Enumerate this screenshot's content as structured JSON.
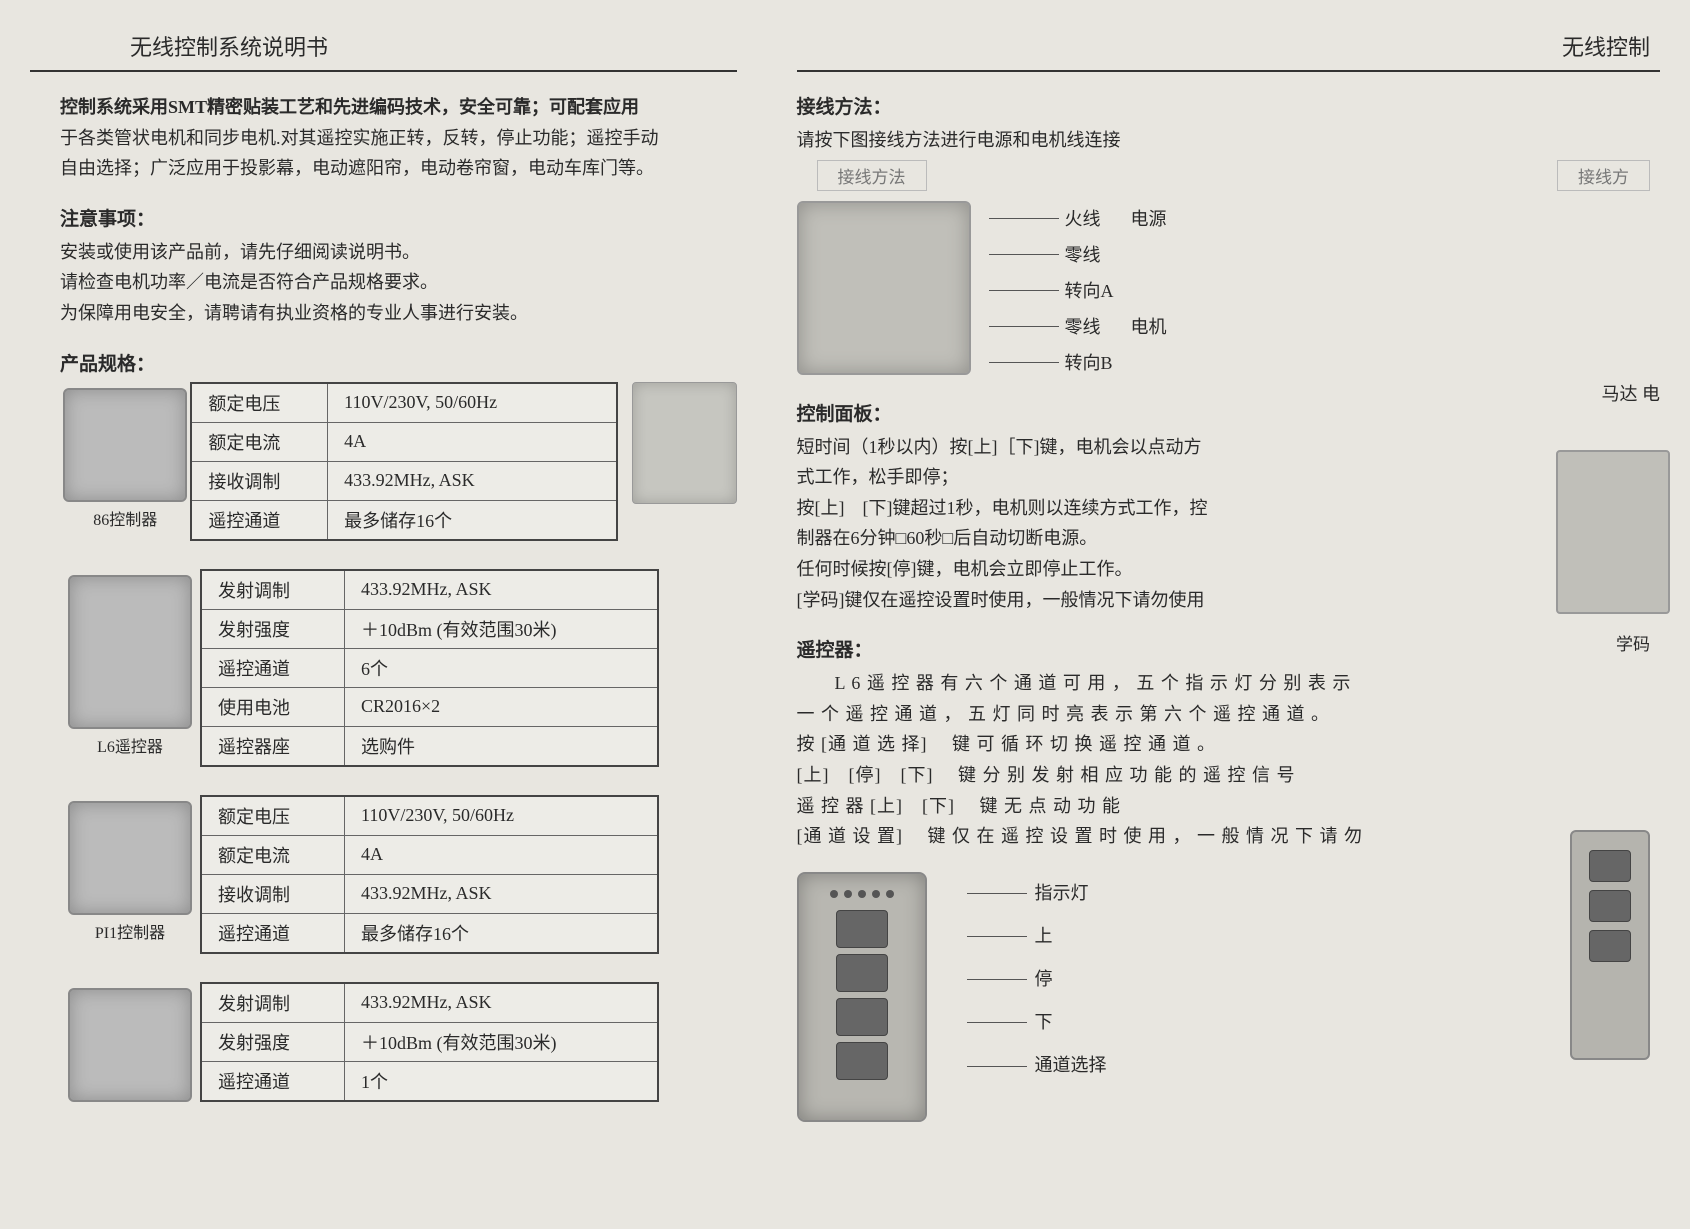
{
  "doc": {
    "title_left": "无线控制系统说明书",
    "title_right_partial": "无线控制",
    "intro_bold": "控制系统采用SMT精密贴装工艺和先进编码技术，安全可靠；可配套应用",
    "intro_line2": "于各类管状电机和同步电机.对其遥控实施正转，反转，停止功能；遥控手动",
    "intro_line3": "自由选择；广泛应用于投影幕，电动遮阳帘，电动卷帘窗，电动车库门等。",
    "notice_hd": "注意事项：",
    "notice_1": "安装或使用该产品前，请先仔细阅读说明书。",
    "notice_2": "请检查电机功率／电流是否符合产品规格要求。",
    "notice_3": "为保障用电安全，请聘请有执业资格的专业人事进行安装。",
    "spec_hd": "产品规格："
  },
  "devices": [
    {
      "caption": "86控制器",
      "rows": [
        {
          "k": "额定电压",
          "v": "110V/230V, 50/60Hz"
        },
        {
          "k": "额定电流",
          "v": "4A"
        },
        {
          "k": "接收调制",
          "v": "433.92MHz, ASK"
        },
        {
          "k": "遥控通道",
          "v": "最多储存16个"
        }
      ],
      "aux": true
    },
    {
      "caption": "L6遥控器",
      "tall": true,
      "rows": [
        {
          "k": "发射调制",
          "v": "433.92MHz, ASK"
        },
        {
          "k": "发射强度",
          "v": "＋10dBm (有效范围30米)"
        },
        {
          "k": "遥控通道",
          "v": "6个"
        },
        {
          "k": "使用电池",
          "v": "CR2016×2"
        },
        {
          "k": "遥控器座",
          "v": "选购件"
        }
      ]
    },
    {
      "caption": "PI1控制器",
      "rows": [
        {
          "k": "额定电压",
          "v": "110V/230V, 50/60Hz"
        },
        {
          "k": "额定电流",
          "v": "4A"
        },
        {
          "k": "接收调制",
          "v": "433.92MHz, ASK"
        },
        {
          "k": "遥控通道",
          "v": "最多储存16个"
        }
      ]
    },
    {
      "caption": "",
      "partial": true,
      "rows": [
        {
          "k": "发射调制",
          "v": "433.92MHz, ASK"
        },
        {
          "k": "发射强度",
          "v": "＋10dBm (有效范围30米)"
        },
        {
          "k": "遥控通道",
          "v": "1个"
        }
      ]
    }
  ],
  "wiring": {
    "hd": "接线方法：",
    "sub": "请按下图接线方法进行电源和电机线连接",
    "label_box_left": "接线方法",
    "label_box_right": "接线方",
    "lines": [
      {
        "t": "火线",
        "g": "电源"
      },
      {
        "t": "零线",
        "g": ""
      },
      {
        "t": "转向A",
        "g": ""
      },
      {
        "t": "零线",
        "g": "电机"
      },
      {
        "t": "转向B",
        "g": ""
      }
    ],
    "edge_label": "马达 电"
  },
  "panel": {
    "hd": "控制面板：",
    "l1": "短时间（1秒以内）按[上]［下]键，电机会以点动方",
    "l2": "式工作，松手即停；",
    "l3": "按[上]　[下]键超过1秒，电机则以连续方式工作，控",
    "l4": "制器在6分钟□60秒□后自动切断电源。",
    "l5": "任何时候按[停]键，电机会立即停止工作。",
    "l6": "[学码]键仅在遥控设置时使用，一般情况下请勿使用",
    "edge_label": "学码"
  },
  "remote": {
    "hd": "遥控器：",
    "l1": "　　L 6 遥 控 器 有 六 个 通 道 可 用 ， 五 个 指 示 灯 分 别 表 示",
    "l2": "一 个 遥 控 通 道 ， 五 灯 同 时 亮 表 示 第 六 个 遥 控 通 道 。",
    "l3": "按 [通 道 选 择]　 键 可 循 环 切 换 遥 控 通 道 。",
    "l4": "[上]　[停]　[下]　 键 分 别 发 射 相 应 功 能 的 遥 控 信 号",
    "l5": "遥 控 器 [上]　[下]　 键 无 点 动 功 能",
    "l6": "[通 道 设 置]　 键 仅 在 遥 控 设 置 时 使 用 ， 一 般 情 况 下 请 勿",
    "labels": [
      "指示灯",
      "上",
      "停",
      "下",
      "通道选择"
    ]
  },
  "colors": {
    "bg": "#e8e6e0",
    "text": "#2a2a2a",
    "border": "#444",
    "device_bg": "#bbb"
  }
}
